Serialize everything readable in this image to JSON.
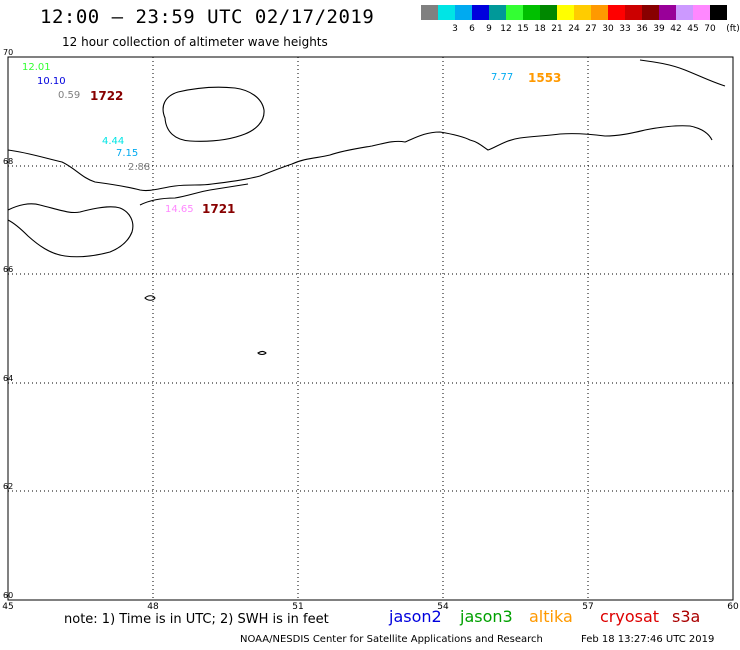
{
  "header": {
    "title": "12:00 – 23:59 UTC 02/17/2019",
    "subtitle": "12 hour collection of altimeter wave heights"
  },
  "legend": {
    "unit": "(ft)",
    "items": [
      {
        "color": "#808080",
        "label": ""
      },
      {
        "color": "#00e5e5",
        "label": "3"
      },
      {
        "color": "#00aaf0",
        "label": "6"
      },
      {
        "color": "#0000dd",
        "label": "9"
      },
      {
        "color": "#009999",
        "label": "12"
      },
      {
        "color": "#33ff33",
        "label": "15"
      },
      {
        "color": "#00c000",
        "label": "18"
      },
      {
        "color": "#008800",
        "label": "21"
      },
      {
        "color": "#ffff00",
        "label": "24"
      },
      {
        "color": "#ffcc00",
        "label": "27"
      },
      {
        "color": "#ff9900",
        "label": "30"
      },
      {
        "color": "#ff0000",
        "label": "33"
      },
      {
        "color": "#cc0000",
        "label": "36"
      },
      {
        "color": "#880000",
        "label": "39"
      },
      {
        "color": "#990099",
        "label": "42"
      },
      {
        "color": "#cc99ff",
        "label": "45"
      },
      {
        "color": "#ff88ff",
        "label": "70"
      },
      {
        "color": "#000000",
        "label": ""
      }
    ]
  },
  "map": {
    "lon_ticks": [
      "45",
      "48",
      "51",
      "54",
      "57",
      "60"
    ],
    "lat_ticks": [
      "70",
      "68",
      "66",
      "64",
      "62",
      "60"
    ],
    "annotations": [
      {
        "text": "12.01",
        "color": "#33ff33"
      },
      {
        "text": "10.10",
        "color": "#0000dd"
      },
      {
        "text": "0.59",
        "color": "#808080"
      },
      {
        "text": "4.44",
        "color": "#00e5e5"
      },
      {
        "text": "7.15",
        "color": "#00aaf0"
      },
      {
        "text": "2.88",
        "color": "#808080"
      },
      {
        "text": "7.77",
        "color": "#00aaf0"
      },
      {
        "text": "14.65",
        "color": "#ff88ff"
      }
    ],
    "passes": [
      {
        "text": "1722",
        "color": "#880000"
      },
      {
        "text": "1553",
        "color": "#ff9900"
      },
      {
        "text": "1721",
        "color": "#880000"
      }
    ]
  },
  "footer": {
    "note": "note:  1) Time is in UTC;  2) SWH is in feet",
    "satellites": [
      {
        "name": "jason2",
        "color": "#0000dd"
      },
      {
        "name": "jason3",
        "color": "#00a000"
      },
      {
        "name": "altika",
        "color": "#ff9900"
      },
      {
        "name": "cryosat",
        "color": "#dd0000"
      },
      {
        "name": "s3a",
        "color": "#aa0000"
      }
    ],
    "credit": "NOAA/NESDIS Center for Satellite Applications and Research",
    "timestamp": "Feb 18 13:27:46 UTC 2019"
  }
}
